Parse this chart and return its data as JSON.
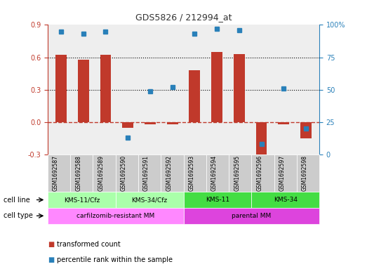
{
  "title": "GDS5826 / 212994_at",
  "samples": [
    "GSM1692587",
    "GSM1692588",
    "GSM1692589",
    "GSM1692590",
    "GSM1692591",
    "GSM1692592",
    "GSM1692593",
    "GSM1692594",
    "GSM1692595",
    "GSM1692596",
    "GSM1692597",
    "GSM1692598"
  ],
  "transformed_count": [
    0.62,
    0.58,
    0.62,
    -0.05,
    -0.02,
    -0.02,
    0.48,
    0.65,
    0.63,
    -0.3,
    -0.02,
    -0.15
  ],
  "percentile_rank": [
    95,
    93,
    95,
    13,
    49,
    52,
    93,
    97,
    96,
    8,
    51,
    20
  ],
  "ylim_left": [
    -0.3,
    0.9
  ],
  "ylim_right": [
    0,
    100
  ],
  "yticks_left": [
    -0.3,
    0.0,
    0.3,
    0.6,
    0.9
  ],
  "yticks_right": [
    0,
    25,
    50,
    75,
    100
  ],
  "hlines_dotted": [
    0.3,
    0.6
  ],
  "bar_color": "#c0392b",
  "dot_color": "#2980b9",
  "zero_line_color": "#c0392b",
  "cell_line_groups": [
    {
      "label": "KMS-11/Cfz",
      "start": 0,
      "end": 3,
      "color": "#aaffaa"
    },
    {
      "label": "KMS-34/Cfz",
      "start": 3,
      "end": 6,
      "color": "#aaffaa"
    },
    {
      "label": "KMS-11",
      "start": 6,
      "end": 9,
      "color": "#44dd44"
    },
    {
      "label": "KMS-34",
      "start": 9,
      "end": 12,
      "color": "#44dd44"
    }
  ],
  "cell_type_groups": [
    {
      "label": "carfilzomib-resistant MM",
      "start": 0,
      "end": 6,
      "color": "#ff88ff"
    },
    {
      "label": "parental MM",
      "start": 6,
      "end": 12,
      "color": "#dd44dd"
    }
  ],
  "cell_line_label": "cell line",
  "cell_type_label": "cell type",
  "legend_items": [
    {
      "label": "transformed count",
      "color": "#c0392b"
    },
    {
      "label": "percentile rank within the sample",
      "color": "#2980b9"
    }
  ],
  "bg_color": "#ffffff",
  "plot_bg_color": "#eeeeee",
  "sample_box_color": "#cccccc"
}
